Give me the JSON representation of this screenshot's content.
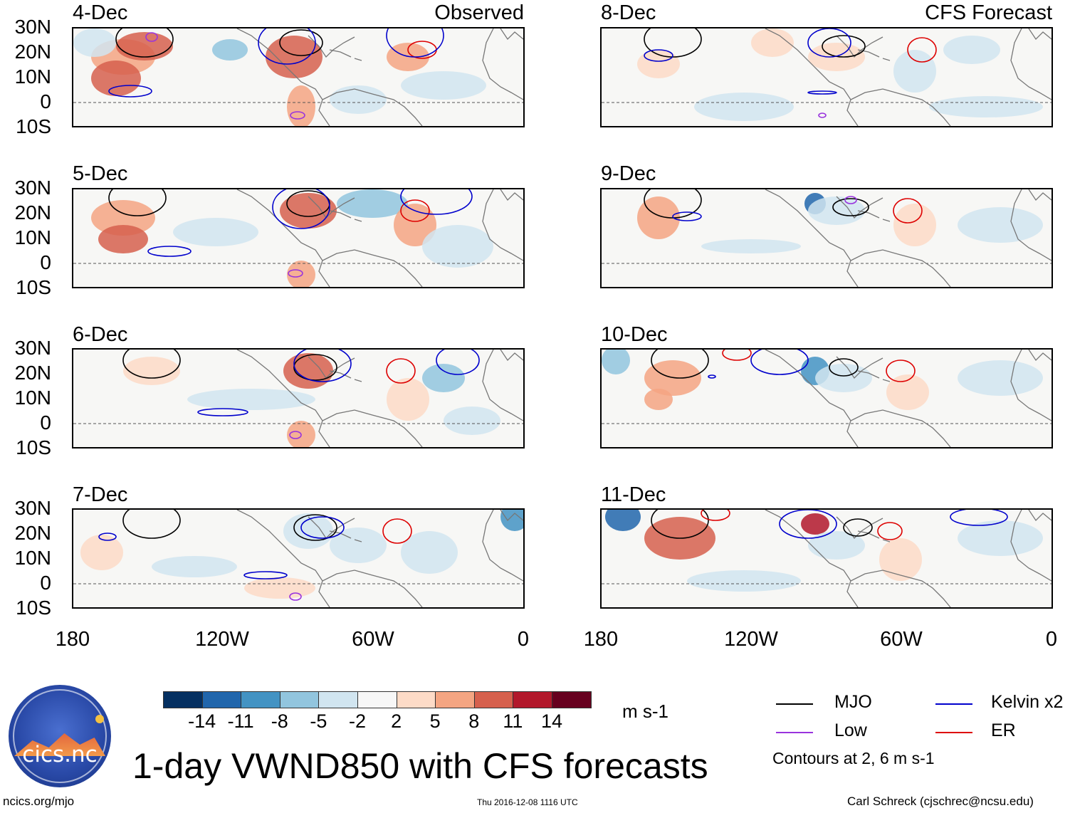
{
  "title": "1-day VWND850 with CFS forecasts",
  "left_column_label": "Observed",
  "right_column_label": "CFS Forecast",
  "observed_dates": [
    "4-Dec",
    "5-Dec",
    "6-Dec",
    "7-Dec"
  ],
  "forecast_dates": [
    "8-Dec",
    "9-Dec",
    "10-Dec",
    "11-Dec"
  ],
  "lat_labels": [
    "30N",
    "20N",
    "10N",
    "0",
    "10S"
  ],
  "lon_labels": [
    "180",
    "120W",
    "60W",
    "0"
  ],
  "colorbar": {
    "labels": [
      "-14",
      "-11",
      "-8",
      "-5",
      "-2",
      "2",
      "5",
      "8",
      "11",
      "14"
    ],
    "colors": [
      "#053061",
      "#2166ac",
      "#4393c3",
      "#92c5de",
      "#d1e5f0",
      "#f7f7f7",
      "#fddbc7",
      "#f4a582",
      "#d6604d",
      "#b2182b",
      "#67001f"
    ],
    "unit": "m s-1"
  },
  "legend": {
    "items": [
      {
        "label": "MJO",
        "color": "#000000"
      },
      {
        "label": "Kelvin x2",
        "color": "#0000cc"
      },
      {
        "label": "Low",
        "color": "#9933dd"
      },
      {
        "label": "ER",
        "color": "#dd0000"
      }
    ],
    "note": "Contours at 2, 6 m s-1"
  },
  "logo_text": "cics.nc",
  "footer": {
    "left": "ncics.org/mjo",
    "center": "Thu 2016-12-08 1116 UTC",
    "right": "Carl Schreck (cjschrec@ncsu.edu)"
  }
}
